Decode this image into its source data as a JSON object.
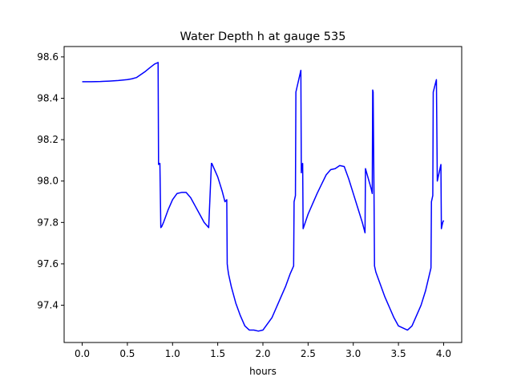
{
  "chart_data": {
    "type": "line",
    "title": "Water Depth h at gauge 535",
    "xlabel": "hours",
    "ylabel": "",
    "xlim": [
      -0.2,
      4.2
    ],
    "ylim": [
      97.22,
      98.65
    ],
    "xticks": [
      0.0,
      0.5,
      1.0,
      1.5,
      2.0,
      2.5,
      3.0,
      3.5,
      4.0
    ],
    "xtick_labels": [
      "0.0",
      "0.5",
      "1.0",
      "1.5",
      "2.0",
      "2.5",
      "3.0",
      "3.5",
      "4.0"
    ],
    "yticks": [
      97.4,
      97.6,
      97.8,
      98.0,
      98.2,
      98.4,
      98.6
    ],
    "ytick_labels": [
      "97.4",
      "97.6",
      "97.8",
      "98.0",
      "98.2",
      "98.4",
      "98.6"
    ],
    "grid": false,
    "series": [
      {
        "color": "#0000ff",
        "x": [
          0.0,
          0.1,
          0.2,
          0.3,
          0.4,
          0.5,
          0.55,
          0.6,
          0.65,
          0.7,
          0.75,
          0.8,
          0.84,
          0.845,
          0.85,
          0.86,
          0.87,
          0.88,
          0.9,
          0.95,
          1.0,
          1.05,
          1.1,
          1.15,
          1.2,
          1.25,
          1.3,
          1.35,
          1.4,
          1.43,
          1.435,
          1.45,
          1.5,
          1.55,
          1.58,
          1.6,
          1.605,
          1.61,
          1.62,
          1.65,
          1.7,
          1.75,
          1.8,
          1.85,
          1.9,
          1.95,
          2.0,
          2.05,
          2.1,
          2.15,
          2.2,
          2.25,
          2.3,
          2.34,
          2.345,
          2.36,
          2.365,
          2.42,
          2.425,
          2.43,
          2.44,
          2.445,
          2.5,
          2.55,
          2.6,
          2.65,
          2.7,
          2.75,
          2.8,
          2.85,
          2.9,
          2.95,
          3.0,
          3.05,
          3.1,
          3.13,
          3.135,
          3.2,
          3.21,
          3.215,
          3.22,
          3.23,
          3.235,
          3.25,
          3.3,
          3.35,
          3.4,
          3.45,
          3.5,
          3.55,
          3.6,
          3.65,
          3.7,
          3.75,
          3.8,
          3.86,
          3.865,
          3.88,
          3.885,
          3.92,
          3.93,
          3.97,
          3.975,
          3.98,
          3.99,
          4.0
        ],
        "y": [
          98.48,
          98.48,
          98.481,
          98.483,
          98.486,
          98.49,
          98.494,
          98.5,
          98.515,
          98.53,
          98.548,
          98.565,
          98.573,
          98.08,
          98.085,
          98.085,
          97.775,
          97.78,
          97.8,
          97.86,
          97.91,
          97.94,
          97.945,
          97.945,
          97.92,
          97.88,
          97.84,
          97.8,
          97.775,
          98.085,
          98.085,
          98.07,
          98.02,
          97.95,
          97.9,
          97.91,
          97.6,
          97.58,
          97.55,
          97.49,
          97.41,
          97.35,
          97.3,
          97.28,
          97.28,
          97.275,
          97.28,
          97.31,
          97.34,
          97.39,
          97.44,
          97.49,
          97.55,
          97.59,
          97.9,
          97.93,
          98.43,
          98.535,
          98.04,
          98.08,
          98.085,
          97.77,
          97.84,
          97.89,
          97.94,
          97.985,
          98.03,
          98.055,
          98.06,
          98.075,
          98.07,
          98.01,
          97.94,
          97.87,
          97.8,
          97.75,
          98.06,
          97.96,
          97.94,
          98.44,
          98.43,
          97.92,
          97.59,
          97.56,
          97.5,
          97.44,
          97.39,
          97.34,
          97.3,
          97.29,
          97.28,
          97.3,
          97.35,
          97.4,
          97.47,
          97.58,
          97.9,
          97.93,
          98.43,
          98.49,
          98.0,
          98.08,
          97.77,
          97.78,
          97.8,
          97.81
        ]
      }
    ]
  }
}
